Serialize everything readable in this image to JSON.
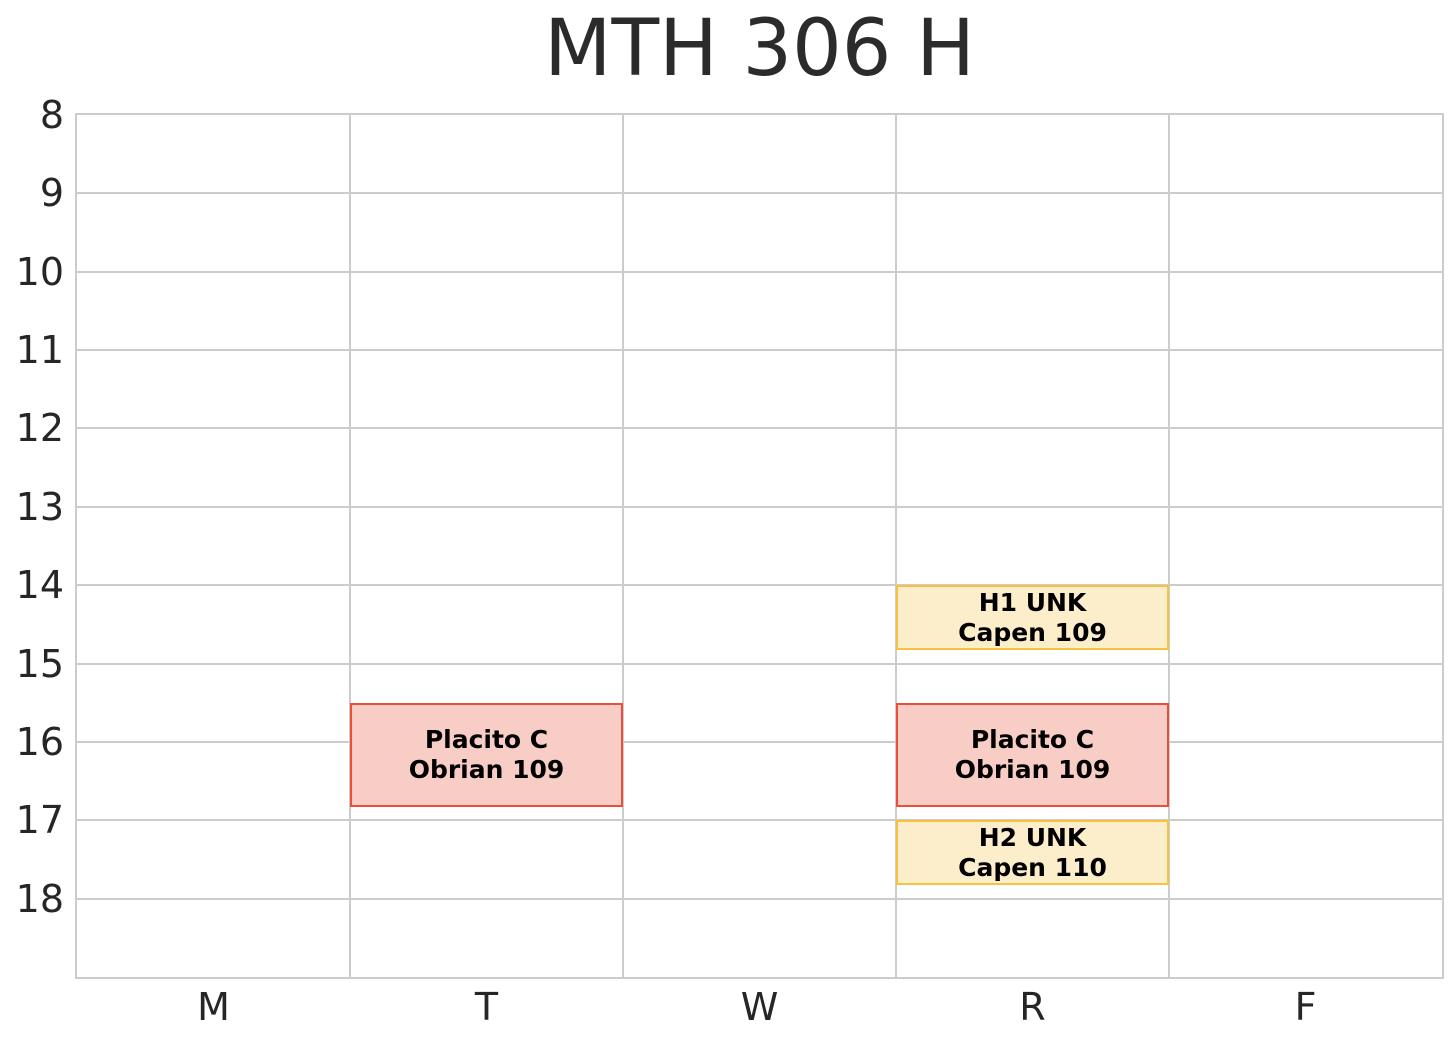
{
  "chart": {
    "title": "MTH 306 H"
  },
  "chart_data": {
    "type": "bar",
    "subtype": "weekly-schedule-blocks",
    "title": "MTH 306 H",
    "xlabel": "",
    "ylabel": "",
    "x_ticks": [
      "M",
      "T",
      "W",
      "R",
      "F"
    ],
    "y_ticks": [
      "8",
      "9",
      "10",
      "11",
      "12",
      "13",
      "14",
      "15",
      "16",
      "17",
      "18"
    ],
    "ylim": [
      8,
      19
    ],
    "y_axis_direction": "8 at top, increasing downward",
    "grid": "on",
    "legend": "none",
    "events": [
      {
        "day": "T",
        "start_hour": 15.5,
        "end_hour": 16.83,
        "label_lines": [
          "Placito C",
          "Obrian 109"
        ],
        "fill": "#f8cdc5",
        "border": "#e8503c"
      },
      {
        "day": "R",
        "start_hour": 14.0,
        "end_hour": 14.83,
        "label_lines": [
          "H1 UNK",
          "Capen 109"
        ],
        "fill": "#fdeecb",
        "border": "#f7c23d"
      },
      {
        "day": "R",
        "start_hour": 15.5,
        "end_hour": 16.83,
        "label_lines": [
          "Placito C",
          "Obrian 109"
        ],
        "fill": "#f8cdc5",
        "border": "#e8503c"
      },
      {
        "day": "R",
        "start_hour": 17.0,
        "end_hour": 17.83,
        "label_lines": [
          "H2 UNK",
          "Capen 110"
        ],
        "fill": "#fdeecb",
        "border": "#f7c23d"
      }
    ],
    "colors": {
      "background": "#ffffff",
      "gridline": "#cccccc",
      "axis_text": "#262626",
      "block_text": "#000000",
      "red_block_fill": "#f8cdc5",
      "red_block_border": "#e8503c",
      "yellow_block_fill": "#fdeecb",
      "yellow_block_border": "#f7c23d"
    }
  }
}
